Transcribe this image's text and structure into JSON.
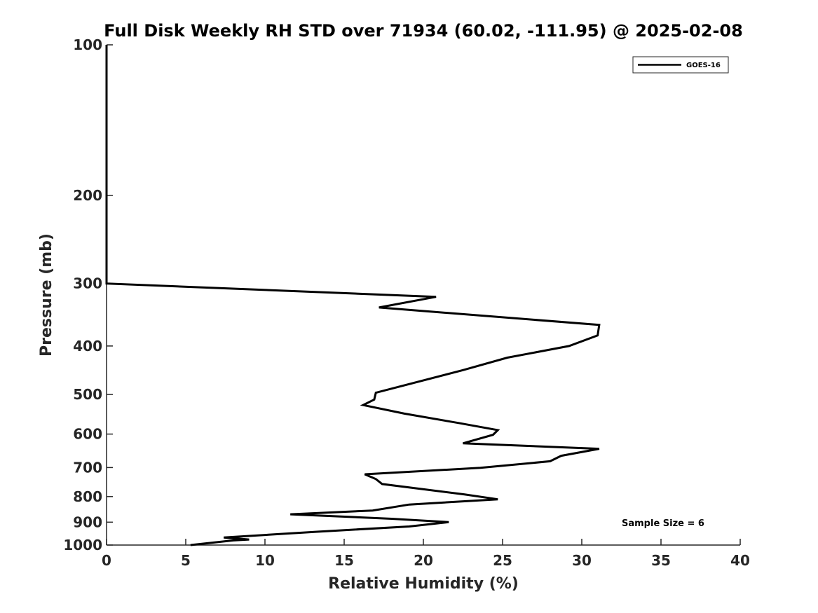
{
  "chart_data": {
    "type": "line",
    "title": "Full Disk Weekly RH STD over 71934 (60.02, -111.95) @ 2025-02-08",
    "xlabel": "Relative Humidity (%)",
    "ylabel": "Pressure (mb)",
    "xlim": [
      0,
      40
    ],
    "ylim": [
      100,
      1000
    ],
    "y_scale": "log",
    "y_inverted": true,
    "grid": false,
    "legend_position": "top-right",
    "x_ticks": [
      "0",
      "5",
      "10",
      "15",
      "20",
      "25",
      "30",
      "35",
      "40"
    ],
    "y_ticks": [
      "100",
      "200",
      "300",
      "400",
      "500",
      "600",
      "700",
      "800",
      "900",
      "1000"
    ],
    "series": [
      {
        "name": "GOES-16",
        "color": "#000000",
        "points": [
          [
            0,
            100
          ],
          [
            0,
            150
          ],
          [
            0,
            200
          ],
          [
            0,
            250
          ],
          [
            0,
            300
          ],
          [
            20.8,
            319
          ],
          [
            17.2,
            335
          ],
          [
            31.1,
            363
          ],
          [
            31.0,
            381
          ],
          [
            29.2,
            400
          ],
          [
            25.3,
            422
          ],
          [
            22.5,
            447
          ],
          [
            17.0,
            496
          ],
          [
            16.9,
            512
          ],
          [
            16.2,
            525
          ],
          [
            18.8,
            546
          ],
          [
            22.2,
            570
          ],
          [
            24.7,
            589
          ],
          [
            24.4,
            602
          ],
          [
            22.5,
            626
          ],
          [
            31.1,
            642
          ],
          [
            28.7,
            663
          ],
          [
            28.0,
            680
          ],
          [
            23.6,
            701
          ],
          [
            16.3,
            722
          ],
          [
            17.0,
            738
          ],
          [
            17.4,
            755
          ],
          [
            22.6,
            792
          ],
          [
            24.7,
            810
          ],
          [
            19.1,
            830
          ],
          [
            16.8,
            853
          ],
          [
            11.6,
            868
          ],
          [
            18.0,
            886
          ],
          [
            21.6,
            900
          ],
          [
            19.1,
            918
          ],
          [
            13.2,
            941
          ],
          [
            7.4,
            966
          ],
          [
            9.0,
            975
          ],
          [
            8.0,
            979
          ],
          [
            5.3,
            1000
          ]
        ]
      }
    ],
    "annotation": "Sample Size = 6"
  }
}
